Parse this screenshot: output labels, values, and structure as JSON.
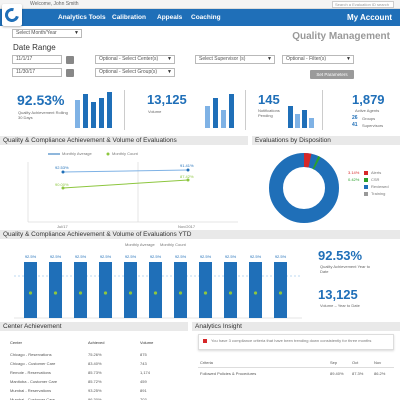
{
  "topstrip": {
    "welcome": "Welcome, John Smith",
    "search_placeholder": "Search a Evaluation ID search"
  },
  "nav": {
    "items": [
      "Analytics Tools",
      "Calibration",
      "Appeals",
      "Coaching"
    ],
    "account": "My Account"
  },
  "filters": {
    "month": "Select Month/Year",
    "date_range_label": "Date Range",
    "date_from": "11/1/17",
    "date_to": "11/30/17",
    "centers": "Optional - Select Center(s)",
    "groups": "Optional - Select Group(s)",
    "supervisor": "Select Supervisor (s)",
    "filters_opt": "Optional - Filter(s)",
    "set_params": "Set Parameters"
  },
  "page_title": "Quality Management",
  "kpis": {
    "quality": {
      "value": "92.53%",
      "label": "Quality Achievement Rolling 30 Days"
    },
    "volume": {
      "value": "13,125",
      "label": "Volume"
    },
    "notifications": {
      "value": "145",
      "label": "Notifications Pending"
    },
    "agents": {
      "value": "1,879",
      "label": "Active Agents",
      "groups_value": "26",
      "groups_label": "Groups",
      "supervisors_value": "41",
      "supervisors_label": "Supervisors"
    }
  },
  "sections": {
    "qc": "Quality & Compliance Achievement & Volume of Evaluations",
    "disposition": "Evaluations by Disposition",
    "ytd": "Quality & Compliance Achievement & Volume of Evaluations YTD",
    "center": "Center Achievement",
    "insight": "Analytics Insight"
  },
  "qc_chart": {
    "legend": [
      "Monthly Average",
      "Monthly Count"
    ],
    "point_labels": [
      "92.53%",
      "91.41%",
      "90.00%",
      "87.42%"
    ],
    "x_labels": [
      "Jul/17",
      "Nov/2017"
    ]
  },
  "disposition": {
    "legend": [
      {
        "value": "3.14%",
        "label": "Alerts",
        "color": "#d62728"
      },
      {
        "value": "0.42%",
        "label": "CSR",
        "color": "#2ca02c"
      },
      {
        "value": "",
        "label": "Reviewed",
        "color": "#1f6fb8"
      },
      {
        "value": "",
        "label": "Training",
        "color": "#999999"
      }
    ]
  },
  "ytd": {
    "legend": [
      "Monthly Average",
      "Monthly Count"
    ],
    "bar_values": [
      "92.5%",
      "92.5%",
      "92.5%",
      "92.5%",
      "92.5%",
      "92.5%",
      "92.5%",
      "92.5%",
      "92.5%",
      "92.5%",
      "92.5%"
    ],
    "quality_value": "92.53%",
    "quality_label": "Quality Achievement Year to Date",
    "volume_value": "13,125",
    "volume_label": "Volume – Year to Date"
  },
  "center": {
    "headers": [
      "Center",
      "Achieved",
      "Volume"
    ],
    "rows": [
      [
        "Chicago - Reservations",
        "75.26%",
        "875"
      ],
      [
        "Chicago - Customer Care",
        "83.40%",
        "743"
      ],
      [
        "Remote - Reservations",
        "85.73%",
        "1,174"
      ],
      [
        "Manitoba - Customer Care",
        "85.72%",
        "459"
      ],
      [
        "Mumbai - Reservations",
        "93.25%",
        "891"
      ],
      [
        "Mumbai - Customer Care",
        "96.30%",
        "703"
      ]
    ]
  },
  "insight": {
    "message": "You have 3 compliance criteria that have been trending down consistently for three months",
    "headers": [
      "Criteria",
      "Sep",
      "Oct",
      "Nov"
    ],
    "rows": [
      [
        "Followed Policies & Procedures",
        "89.40%",
        "87.3%",
        "86.2%"
      ]
    ]
  },
  "colors": {
    "brand": "#1f6fb8",
    "light_blue": "#7fb2e5",
    "green": "#8dc63f"
  }
}
